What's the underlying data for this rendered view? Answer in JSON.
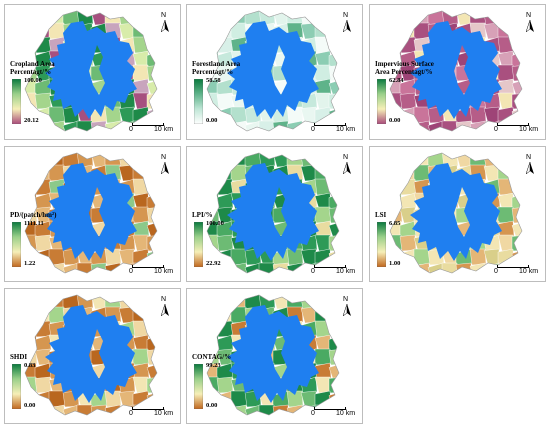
{
  "panels": [
    {
      "id": "cropland",
      "title": "Cropland Area\nPercentagt/%",
      "max": "100.00",
      "min": "20.12",
      "ramp": [
        "#0a7a3e",
        "#9ad08a",
        "#f6efb8",
        "#a94a7a"
      ],
      "mix": [
        "#1e8a49",
        "#1e8a49",
        "#2d9a57",
        "#6dbb74",
        "#a4d58c",
        "#d8ecaa",
        "#f3e6b4",
        "#c8a4bd",
        "#a6507f"
      ]
    },
    {
      "id": "forestland",
      "title": "Forestland Area\nPercentagt/%",
      "max": "58.58",
      "min": "0.00",
      "ramp": [
        "#0a7a3e",
        "#5fb38a",
        "#bfe6d6",
        "#ffffff"
      ],
      "mix": [
        "#d8f0e8",
        "#c6e9dc",
        "#e9f7f1",
        "#b3e0cd",
        "#f4fbf8",
        "#8ccdb3",
        "#d0eee2",
        "#5fb38a",
        "#e2f4ec"
      ]
    },
    {
      "id": "impervious",
      "title": "Impervious Surface\nArea Percentagt/%",
      "max": "62.84",
      "min": "0.00",
      "ramp": [
        "#0a7a3e",
        "#9ad08a",
        "#f6efb8",
        "#a94a7a"
      ],
      "mix": [
        "#a9507f",
        "#b65d88",
        "#9e4477",
        "#c9749a",
        "#b65d88",
        "#d7a1b7",
        "#a9507f",
        "#e5c7c9",
        "#f3e6b4"
      ]
    },
    {
      "id": "pd",
      "title": "PD/(patch/hm²)",
      "max": "1111.11",
      "min": "1.22",
      "ramp": [
        "#0a7a3e",
        "#9ad08a",
        "#f6efb8",
        "#c0661c"
      ],
      "mix": [
        "#c87c35",
        "#d59650",
        "#e4b677",
        "#c87c35",
        "#f0d8a3",
        "#b9671f",
        "#d59650",
        "#8cc98a",
        "#e4b677"
      ]
    },
    {
      "id": "lpi",
      "title": "LPI/%",
      "max": "100.00",
      "min": "22.92",
      "ramp": [
        "#0a7a3e",
        "#9ad08a",
        "#f6efb8",
        "#c0661c"
      ],
      "mix": [
        "#1e8a49",
        "#2d9a57",
        "#1e8a49",
        "#4aaa63",
        "#6dbb74",
        "#1e8a49",
        "#a4d58c",
        "#e9dca0",
        "#2d9a57"
      ]
    },
    {
      "id": "lsi",
      "title": "LSI",
      "max": "6.85",
      "min": "1.00",
      "ramp": [
        "#0a7a3e",
        "#9ad08a",
        "#f6efb8",
        "#c0661c"
      ],
      "mix": [
        "#e9dca0",
        "#f3e6b4",
        "#d9cf8a",
        "#a4d58c",
        "#e4b677",
        "#f3e6b4",
        "#6dbb74",
        "#d59650",
        "#f0d8a3"
      ]
    },
    {
      "id": "shdi",
      "title": "SHDI",
      "max": "0.83",
      "min": "0.00",
      "ramp": [
        "#0a7a3e",
        "#9ad08a",
        "#f6efb8",
        "#c0661c"
      ],
      "mix": [
        "#c87c35",
        "#d59650",
        "#e4b677",
        "#b9671f",
        "#f0d8a3",
        "#c87c35",
        "#a4d58c",
        "#d59650",
        "#f3e6b4"
      ]
    },
    {
      "id": "contag",
      "title": "CONTAG/%",
      "max": "99.23",
      "min": "0.00",
      "ramp": [
        "#0a7a3e",
        "#9ad08a",
        "#f6efb8",
        "#c0661c"
      ],
      "mix": [
        "#1e8a49",
        "#2d9a57",
        "#6dbb74",
        "#1e8a49",
        "#a4d58c",
        "#e4b677",
        "#4aaa63",
        "#c87c35",
        "#f3e6b4"
      ]
    }
  ],
  "north_label": "N",
  "scale": {
    "start": "0",
    "end": "10 km"
  },
  "colors": {
    "water": "#1f7ff0",
    "border": "#bdbdbd"
  }
}
